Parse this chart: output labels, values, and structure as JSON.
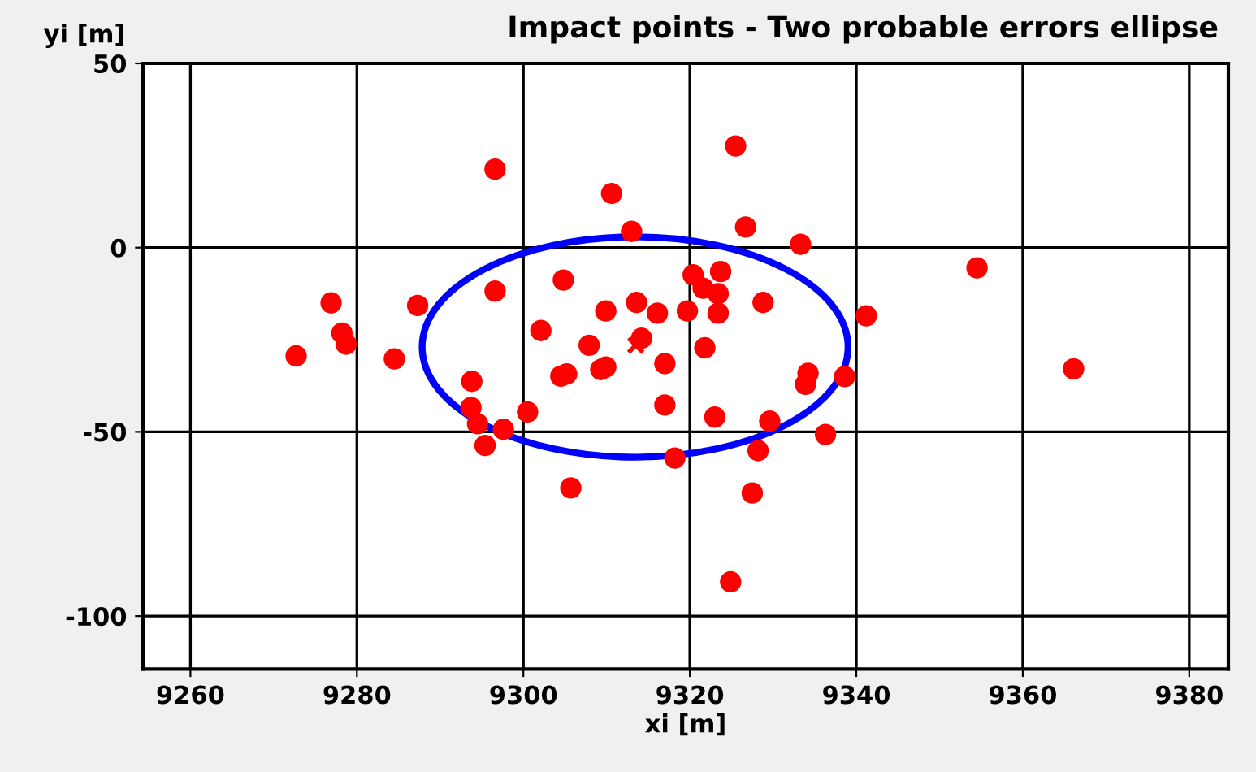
{
  "chart_data": {
    "type": "scatter",
    "title": "Impact points - Two probable errors ellipse",
    "xlabel": "xi [m]",
    "ylabel": "yi [m]",
    "xlim": [
      9254.3,
      9384.7
    ],
    "ylim": [
      -114.4,
      50
    ],
    "xticks": [
      9260,
      9280,
      9300,
      9320,
      9340,
      9360,
      9380
    ],
    "yticks": [
      -100,
      -50,
      0,
      50
    ],
    "grid": true,
    "legend": false,
    "series": [
      {
        "type": "scatter",
        "color": "#ff0000",
        "marker": "circle",
        "x": [
          9296.6,
          9296.6,
          9276.9,
          9278.2,
          9278.7,
          9272.7,
          9287.3,
          9284.5,
          9302.1,
          9325.5,
          9310.6,
          9313.0,
          9326.7,
          9333.3,
          9304.8,
          9320.4,
          9323.7,
          9321.6,
          9323.4,
          9309.9,
          9313.6,
          9316.1,
          9319.7,
          9323.4,
          9328.8,
          9341.2,
          9314.2,
          9307.9,
          9321.8,
          9304.5,
          9305.2,
          9309.9,
          9309.3,
          9317.0,
          9317.0,
          9300.5,
          9323.0,
          9334.2,
          9333.9,
          9338.6,
          9329.6,
          9336.3,
          9328.2,
          9318.2,
          9305.7,
          9327.5,
          9324.9,
          9293.8,
          9293.7,
          9294.5,
          9295.4,
          9297.6,
          9354.5,
          9366.1
        ],
        "values": [
          21.3,
          -11.8,
          -15.0,
          -23.2,
          -26.2,
          -29.4,
          -15.7,
          -30.2,
          -22.5,
          27.6,
          14.7,
          4.4,
          5.6,
          0.9,
          -8.8,
          -7.4,
          -6.5,
          -11.0,
          -12.5,
          -17.2,
          -14.9,
          -17.8,
          -17.2,
          -17.8,
          -14.9,
          -18.5,
          -24.6,
          -26.5,
          -27.2,
          -34.9,
          -34.3,
          -32.4,
          -33.1,
          -31.5,
          -42.7,
          -44.6,
          -46.0,
          -34.1,
          -37.1,
          -35.0,
          -47.1,
          -50.7,
          -55.1,
          -57.1,
          -65.2,
          -66.6,
          -90.7,
          -36.3,
          -43.4,
          -47.8,
          -53.7,
          -49.3,
          -5.5,
          -32.9
        ]
      },
      {
        "type": "scatter",
        "color": "#ff0000",
        "marker": "cross",
        "x": [
          9313.5
        ],
        "values": [
          -26.5
        ]
      }
    ]
  }
}
